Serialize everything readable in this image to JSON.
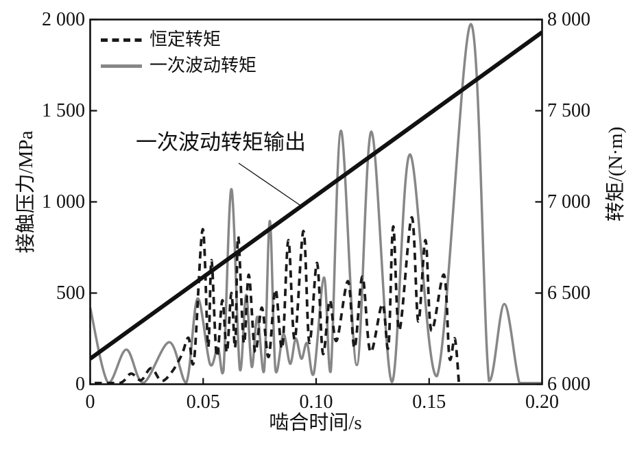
{
  "figure": {
    "background": "#ffffff",
    "ink_color": "#111111"
  },
  "chart_data": {
    "type": "line",
    "title": "",
    "xlabel": "啮合时间/s",
    "ylabel_left": "接触压力/MPa",
    "ylabel_right": "转矩/(N·m)",
    "xlim": [
      0,
      0.2
    ],
    "ylim_left": [
      0,
      2000
    ],
    "ylim_right": [
      6000,
      8000
    ],
    "grid": false,
    "xticks": {
      "values": [
        0,
        0.05,
        0.1,
        0.15,
        0.2
      ],
      "labels": [
        "0",
        "0.05",
        "0.10",
        "0.15",
        "0.20"
      ]
    },
    "yticks_left": {
      "values": [
        0,
        500,
        1000,
        1500,
        2000
      ],
      "labels": [
        "0",
        "500",
        "1 000",
        "1 500",
        "2 000"
      ]
    },
    "yticks_right": {
      "values": [
        6000,
        6500,
        7000,
        7500,
        8000
      ],
      "labels": [
        "6 000",
        "6 500",
        "7 000",
        "7 500",
        "8 000"
      ]
    },
    "legend": {
      "position": "top-left-inside",
      "items": [
        {
          "label": "恒定转矩",
          "style": "dashed",
          "color": "#1a1a1a"
        },
        {
          "label": "一次波动转矩",
          "style": "solid",
          "color": "#878787"
        }
      ]
    },
    "annotation": {
      "text": "一次波动转矩输出",
      "points_to": "torque-ramp-line"
    },
    "series": [
      {
        "name": "恒定转矩",
        "axis": "left",
        "unit": "MPa",
        "color": "#1a1a1a",
        "line": "dashed",
        "width": 3.8,
        "points": [
          [
            0.002,
            2
          ],
          [
            0.013,
            2
          ],
          [
            0.018,
            58
          ],
          [
            0.0225,
            22
          ],
          [
            0.027,
            88
          ],
          [
            0.0315,
            18
          ],
          [
            0.036,
            65
          ],
          [
            0.0405,
            160
          ],
          [
            0.0435,
            255
          ],
          [
            0.046,
            135
          ],
          [
            0.0498,
            850
          ],
          [
            0.0522,
            205
          ],
          [
            0.0537,
            680
          ],
          [
            0.056,
            155
          ],
          [
            0.0585,
            460
          ],
          [
            0.0605,
            175
          ],
          [
            0.0625,
            500
          ],
          [
            0.0642,
            205
          ],
          [
            0.0655,
            810
          ],
          [
            0.068,
            225
          ],
          [
            0.0702,
            600
          ],
          [
            0.073,
            178
          ],
          [
            0.076,
            420
          ],
          [
            0.079,
            150
          ],
          [
            0.082,
            520
          ],
          [
            0.085,
            198
          ],
          [
            0.0877,
            790
          ],
          [
            0.0905,
            245
          ],
          [
            0.0944,
            840
          ],
          [
            0.097,
            228
          ],
          [
            0.1004,
            665
          ],
          [
            0.103,
            168
          ],
          [
            0.106,
            460
          ],
          [
            0.109,
            238
          ],
          [
            0.1141,
            565
          ],
          [
            0.117,
            198
          ],
          [
            0.1205,
            590
          ],
          [
            0.124,
            178
          ],
          [
            0.1293,
            440
          ],
          [
            0.132,
            205
          ],
          [
            0.1341,
            865
          ],
          [
            0.1368,
            295
          ],
          [
            0.1423,
            915
          ],
          [
            0.1452,
            345
          ],
          [
            0.1484,
            790
          ],
          [
            0.151,
            295
          ],
          [
            0.1566,
            600
          ],
          [
            0.159,
            145
          ],
          [
            0.1614,
            250
          ],
          [
            0.1632,
            4
          ]
        ]
      },
      {
        "name": "一次波动转矩",
        "axis": "left",
        "unit": "MPa",
        "color": "#878787",
        "line": "solid",
        "width": 3.5,
        "points": [
          [
            0,
            420
          ],
          [
            0.008,
            3
          ],
          [
            0.016,
            190
          ],
          [
            0.0235,
            8
          ],
          [
            0.035,
            230
          ],
          [
            0.0425,
            8
          ],
          [
            0.0475,
            470
          ],
          [
            0.053,
            112
          ],
          [
            0.0565,
            200
          ],
          [
            0.059,
            75
          ],
          [
            0.0625,
            1070
          ],
          [
            0.0662,
            85
          ],
          [
            0.069,
            490
          ],
          [
            0.0715,
            95
          ],
          [
            0.074,
            370
          ],
          [
            0.077,
            75
          ],
          [
            0.0795,
            895
          ],
          [
            0.082,
            78
          ],
          [
            0.0855,
            275
          ],
          [
            0.0885,
            112
          ],
          [
            0.091,
            250
          ],
          [
            0.0935,
            140
          ],
          [
            0.096,
            225
          ],
          [
            0.099,
            60
          ],
          [
            0.1035,
            585
          ],
          [
            0.1065,
            72
          ],
          [
            0.111,
            1390
          ],
          [
            0.118,
            105
          ],
          [
            0.1245,
            1385
          ],
          [
            0.1335,
            12
          ],
          [
            0.1415,
            1260
          ],
          [
            0.1535,
            45
          ],
          [
            0.1685,
            1975
          ],
          [
            0.1765,
            18
          ],
          [
            0.1833,
            440
          ],
          [
            0.19,
            3
          ],
          [
            0.195,
            3
          ],
          [
            0.2,
            3
          ]
        ]
      },
      {
        "name": "一次波动转矩输出",
        "axis": "right",
        "unit": "N·m",
        "color": "#111111",
        "line": "solid",
        "width": 6,
        "points": [
          [
            0,
            6140
          ],
          [
            0.2,
            7930
          ]
        ]
      }
    ]
  }
}
